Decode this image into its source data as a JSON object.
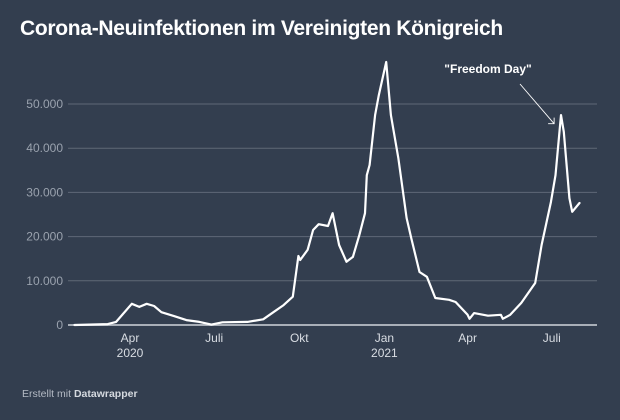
{
  "title": "Corona-Neuinfektionen im Vereinigten Königreich",
  "footer": {
    "prefix": "Erstellt mit",
    "brand": "Datawrapper"
  },
  "colors": {
    "background": "#333e4f",
    "line": "#ffffff",
    "grid": "#5f6877",
    "baseline": "#a9afb8"
  },
  "chart_data": {
    "type": "line",
    "title": "Corona-Neuinfektionen im Vereinigten Königreich",
    "xlabel": "",
    "ylabel": "",
    "ylim": [
      0,
      60000
    ],
    "grid": true,
    "y_ticks": [
      {
        "value": 0,
        "label": "0"
      },
      {
        "value": 10000,
        "label": "10.000"
      },
      {
        "value": 20000,
        "label": "20.000"
      },
      {
        "value": 30000,
        "label": "30.000"
      },
      {
        "value": 40000,
        "label": "40.000"
      },
      {
        "value": 50000,
        "label": "50.000"
      }
    ],
    "x_ticks": [
      {
        "date": "2020-04-01",
        "label": "Apr",
        "sub": "2020"
      },
      {
        "date": "2020-07-01",
        "label": "Juli",
        "sub": ""
      },
      {
        "date": "2020-10-01",
        "label": "Okt",
        "sub": ""
      },
      {
        "date": "2021-01-01",
        "label": "Jan",
        "sub": "2021"
      },
      {
        "date": "2021-04-01",
        "label": "Apr",
        "sub": ""
      },
      {
        "date": "2021-07-01",
        "label": "Juli",
        "sub": ""
      }
    ],
    "series": [
      {
        "name": "Neuinfektionen",
        "points": [
          [
            "2020-02-01",
            0
          ],
          [
            "2020-03-08",
            200
          ],
          [
            "2020-03-17",
            700
          ],
          [
            "2020-04-03",
            4800
          ],
          [
            "2020-04-11",
            4100
          ],
          [
            "2020-04-19",
            4800
          ],
          [
            "2020-04-27",
            4300
          ],
          [
            "2020-05-05",
            2900
          ],
          [
            "2020-05-19",
            2000
          ],
          [
            "2020-06-01",
            1100
          ],
          [
            "2020-06-15",
            700
          ],
          [
            "2020-06-28",
            100
          ],
          [
            "2020-07-10",
            600
          ],
          [
            "2020-08-06",
            700
          ],
          [
            "2020-08-23",
            1300
          ],
          [
            "2020-09-03",
            2900
          ],
          [
            "2020-09-14",
            4500
          ],
          [
            "2020-09-24",
            6400
          ],
          [
            "2020-09-30",
            15600
          ],
          [
            "2020-10-02",
            14700
          ],
          [
            "2020-10-10",
            17000
          ],
          [
            "2020-10-16",
            21500
          ],
          [
            "2020-10-22",
            22800
          ],
          [
            "2020-11-01",
            22400
          ],
          [
            "2020-11-06",
            25300
          ],
          [
            "2020-11-13",
            18100
          ],
          [
            "2020-11-21",
            14300
          ],
          [
            "2020-11-28",
            15400
          ],
          [
            "2020-12-05",
            20400
          ],
          [
            "2020-12-11",
            25300
          ],
          [
            "2020-12-13",
            33900
          ],
          [
            "2020-12-16",
            36200
          ],
          [
            "2020-12-22",
            47500
          ],
          [
            "2020-12-26",
            52000
          ],
          [
            "2021-01-03",
            59500
          ],
          [
            "2021-01-08",
            47500
          ],
          [
            "2021-01-16",
            37800
          ],
          [
            "2021-01-25",
            24200
          ],
          [
            "2021-01-30",
            19700
          ],
          [
            "2021-02-08",
            12000
          ],
          [
            "2021-02-16",
            10900
          ],
          [
            "2021-02-25",
            6100
          ],
          [
            "2021-03-12",
            5700
          ],
          [
            "2021-03-19",
            5200
          ],
          [
            "2021-04-01",
            2300
          ],
          [
            "2021-04-03",
            1400
          ],
          [
            "2021-04-08",
            2700
          ],
          [
            "2021-04-23",
            2100
          ],
          [
            "2021-05-07",
            2300
          ],
          [
            "2021-05-09",
            1400
          ],
          [
            "2021-05-17",
            2300
          ],
          [
            "2021-05-29",
            5000
          ],
          [
            "2021-06-13",
            9500
          ],
          [
            "2021-06-20",
            18100
          ],
          [
            "2021-06-30",
            27800
          ],
          [
            "2021-07-05",
            33900
          ],
          [
            "2021-07-11",
            47500
          ],
          [
            "2021-07-14",
            43700
          ],
          [
            "2021-07-20",
            28700
          ],
          [
            "2021-07-23",
            25600
          ],
          [
            "2021-07-31",
            27600
          ]
        ]
      }
    ],
    "annotations": [
      {
        "text": "\"Freedom Day\"",
        "date": "2021-07-10",
        "value": 46000
      }
    ]
  }
}
